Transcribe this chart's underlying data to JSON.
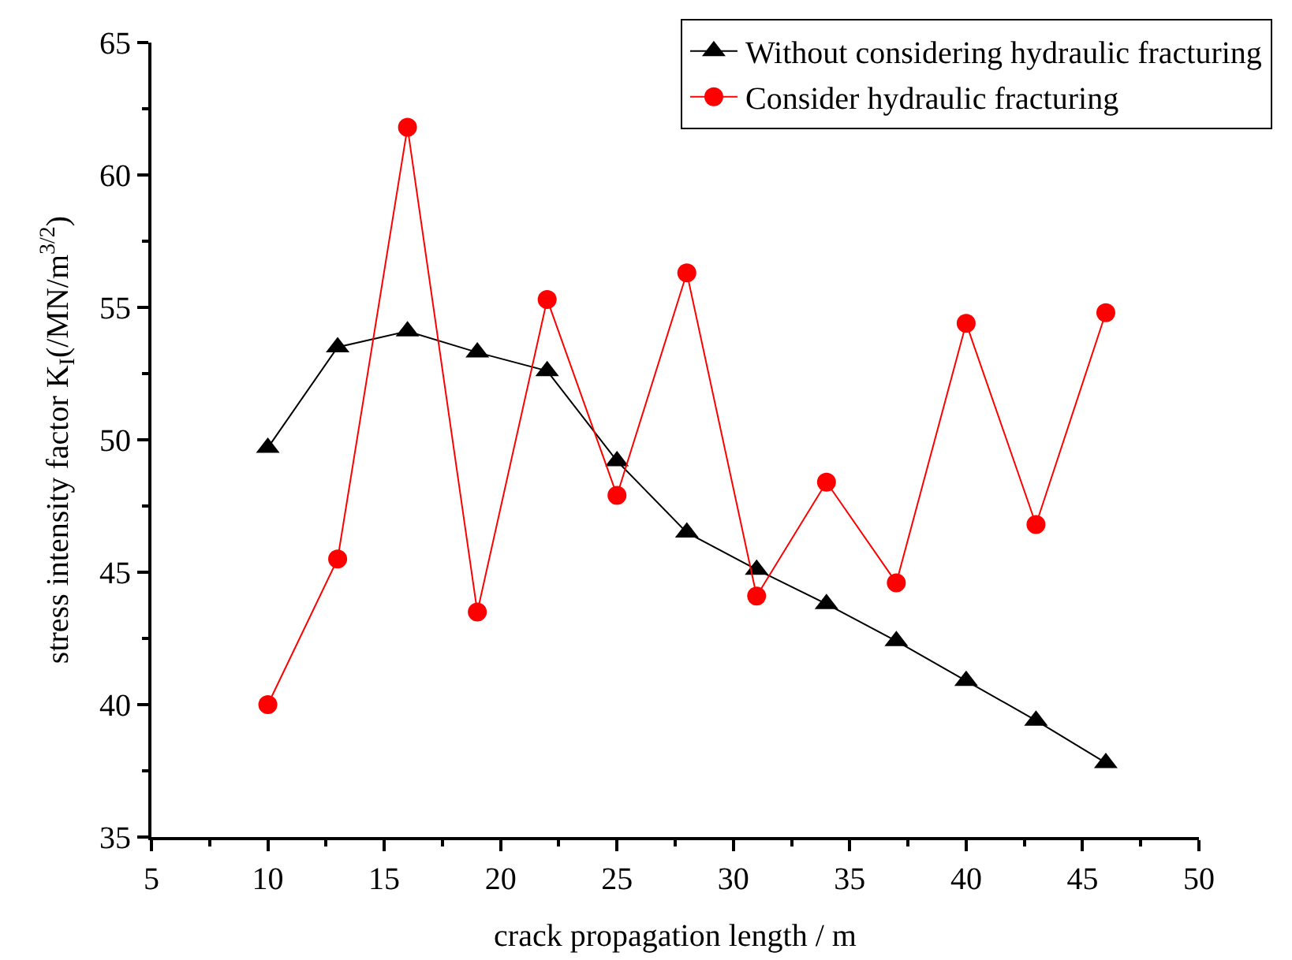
{
  "chart_data": {
    "type": "line",
    "xlabel": "crack propagation length / m",
    "ylabel": "stress intensity factor K$_{I}$(/MN/m$^{3/2}$)",
    "x": [
      10,
      13,
      16,
      19,
      22,
      25,
      28,
      31,
      34,
      37,
      40,
      43,
      46
    ],
    "series": [
      {
        "name": "Without considering hydraulic fracturing",
        "color": "#000000",
        "marker": "triangle",
        "values": [
          49.7,
          53.5,
          54.1,
          53.3,
          52.6,
          49.2,
          46.5,
          45.1,
          43.8,
          42.4,
          40.9,
          39.4,
          37.8
        ]
      },
      {
        "name": "Consider hydraulic fracturing",
        "color": "#ff0000",
        "marker": "circle",
        "values": [
          40.0,
          45.5,
          61.8,
          43.5,
          55.3,
          47.9,
          56.3,
          44.1,
          48.4,
          44.6,
          54.4,
          46.8,
          54.8
        ]
      }
    ],
    "xlim": [
      5,
      50
    ],
    "xticks": [
      5,
      10,
      15,
      20,
      25,
      30,
      35,
      40,
      45,
      50
    ],
    "ylim": [
      35,
      65
    ],
    "yticks": [
      35,
      40,
      45,
      50,
      55,
      60,
      65
    ],
    "grid": false,
    "legend": "top right",
    "line_style": "solid"
  }
}
